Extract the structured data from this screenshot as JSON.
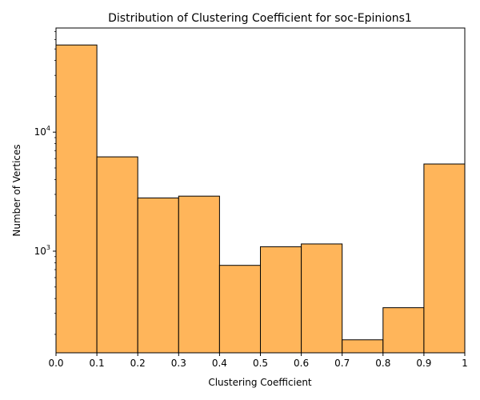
{
  "chart_data": {
    "type": "bar",
    "title": "Distribution of Clustering Coefficient for soc-Epinions1",
    "xlabel": "Clustering Coefficient",
    "ylabel": "Number of Vertices",
    "bin_edges": [
      0.0,
      0.1,
      0.2,
      0.3,
      0.4,
      0.5,
      0.6,
      0.7,
      0.8,
      0.9,
      1.0
    ],
    "values": [
      54000,
      6200,
      2800,
      2900,
      760,
      1090,
      1150,
      180,
      335,
      5400
    ],
    "xlim": [
      0,
      1
    ],
    "ylim": [
      140,
      75000
    ],
    "yscale": "log",
    "xticks": [
      {
        "value": 0.0,
        "label": "0.0"
      },
      {
        "value": 0.1,
        "label": "0.1"
      },
      {
        "value": 0.2,
        "label": "0.2"
      },
      {
        "value": 0.3,
        "label": "0.3"
      },
      {
        "value": 0.4,
        "label": "0.4"
      },
      {
        "value": 0.5,
        "label": "0.5"
      },
      {
        "value": 0.6,
        "label": "0.6"
      },
      {
        "value": 0.7,
        "label": "0.7"
      },
      {
        "value": 0.8,
        "label": "0.8"
      },
      {
        "value": 0.9,
        "label": "0.9"
      },
      {
        "value": 1.0,
        "label": "1"
      }
    ],
    "yticks_major": [
      {
        "value": 1000,
        "base": "10",
        "exp": "3"
      },
      {
        "value": 10000,
        "base": "10",
        "exp": "4"
      }
    ],
    "bar_color": "#ffb55a",
    "edge_color": "#000000",
    "grid": false,
    "legend": "none"
  }
}
